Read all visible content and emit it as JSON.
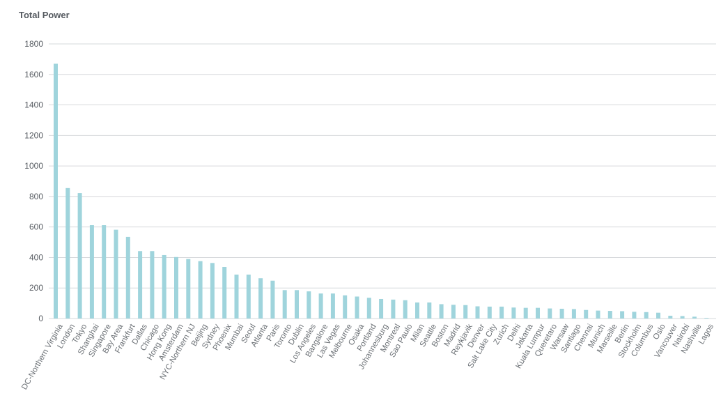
{
  "chart_data": {
    "type": "bar",
    "title": "Total Power",
    "xlabel": "",
    "ylabel": "",
    "ylim": [
      0,
      1800
    ],
    "yticks": [
      "0",
      "200",
      "400",
      "600",
      "800",
      "1000",
      "1200",
      "1400",
      "1600",
      "1800"
    ],
    "grid": true,
    "bar_color": "#9fd4dc",
    "categories": [
      "DC-Northern Virginia",
      "London",
      "Tokyo",
      "Shanghai",
      "Singapore",
      "Bay Area",
      "Frankfurt",
      "Dallas",
      "Chicago",
      "Hong Kong",
      "Amsterdam",
      "NYC-Northern NJ",
      "Beijing",
      "Sydney",
      "Phoenix",
      "Mumbai",
      "Seoul",
      "Atlanta",
      "Paris",
      "Toronto",
      "Dublin",
      "Los Angeles",
      "Bangalore",
      "Las Vegas",
      "Melbourne",
      "Osaka",
      "Portland",
      "Johannesburg",
      "Montreal",
      "Sao Paulo",
      "Milan",
      "Seattle",
      "Boston",
      "Madrid",
      "Reykjavik",
      "Denver",
      "Salt Lake City",
      "Zurich",
      "Delhi",
      "Jakarta",
      "Kuala Lumpur",
      "Queretaro",
      "Warsaw",
      "Santiago",
      "Chennai",
      "Munich",
      "Marseille",
      "Berlin",
      "Stockholm",
      "Columbus",
      "Oslo",
      "Vancouver",
      "Nairobi",
      "Nashville",
      "Lagos"
    ],
    "values": [
      1670,
      855,
      822,
      612,
      612,
      582,
      535,
      442,
      442,
      416,
      403,
      390,
      376,
      364,
      338,
      288,
      288,
      264,
      248,
      186,
      186,
      178,
      164,
      164,
      152,
      144,
      136,
      128,
      124,
      120,
      105,
      105,
      94,
      90,
      88,
      80,
      78,
      78,
      72,
      70,
      70,
      66,
      64,
      62,
      56,
      52,
      50,
      48,
      44,
      42,
      38,
      18,
      16,
      12,
      4
    ]
  }
}
